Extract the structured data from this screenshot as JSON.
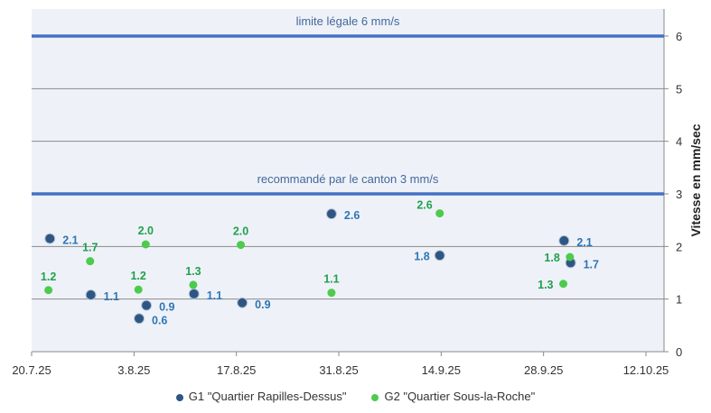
{
  "chart_data": {
    "type": "scatter",
    "title": "",
    "xlabel": "",
    "ylabel": "Vitesse en mm/sec",
    "x_ticks": [
      "20.7.25",
      "3.8.25",
      "17.8.25",
      "31.8.25",
      "14.9.25",
      "28.9.25",
      "12.10.25"
    ],
    "x_tick_days": [
      0,
      14,
      28,
      42,
      56,
      70,
      84
    ],
    "x_unit": "days since 20.7.25",
    "xlim": [
      0,
      86
    ],
    "ylim": [
      0,
      6.5
    ],
    "y_ticks": [
      0,
      1,
      2,
      3,
      4,
      5,
      6
    ],
    "grid": true,
    "legend_position": "bottom",
    "reference_lines": [
      {
        "y": 6,
        "label": "limite légale 6 mm/s"
      },
      {
        "y": 3,
        "label": "recommandé par le canton 3 mm/s"
      }
    ],
    "series": [
      {
        "name": "G1 \"Quartier Rapilles-Dessus\"",
        "color": "#2f5683",
        "label_color": "#2e75b6",
        "points": [
          {
            "x": 2.5,
            "y": 2.15,
            "label": "2.1",
            "label_pos": "right"
          },
          {
            "x": 8.1,
            "y": 1.08,
            "label": "1.1",
            "label_pos": "right"
          },
          {
            "x": 14.7,
            "y": 0.63,
            "label": "0.6",
            "label_pos": "right"
          },
          {
            "x": 15.7,
            "y": 0.88,
            "label": "0.9",
            "label_pos": "right"
          },
          {
            "x": 22.2,
            "y": 1.1,
            "label": "1.1",
            "label_pos": "right"
          },
          {
            "x": 28.8,
            "y": 0.93,
            "label": "0.9",
            "label_pos": "right"
          },
          {
            "x": 41.0,
            "y": 2.62,
            "label": "2.6",
            "label_pos": "right"
          },
          {
            "x": 55.8,
            "y": 1.83,
            "label": "1.8",
            "label_pos": "left"
          },
          {
            "x": 72.8,
            "y": 2.11,
            "label": "2.1",
            "label_pos": "right"
          },
          {
            "x": 73.7,
            "y": 1.69,
            "label": "1.7",
            "label_pos": "right"
          }
        ]
      },
      {
        "name": "G2 \"Quartier Sous-la-Roche\"",
        "color": "#4ccb4c",
        "label_color": "#21a04b",
        "points": [
          {
            "x": 2.3,
            "y": 1.17,
            "label": "1.2",
            "label_pos": "above"
          },
          {
            "x": 8.0,
            "y": 1.72,
            "label": "1.7",
            "label_pos": "above"
          },
          {
            "x": 14.6,
            "y": 1.18,
            "label": "1.2",
            "label_pos": "above"
          },
          {
            "x": 15.6,
            "y": 2.04,
            "label": "2.0",
            "label_pos": "above"
          },
          {
            "x": 22.1,
            "y": 1.27,
            "label": "1.3",
            "label_pos": "above"
          },
          {
            "x": 28.6,
            "y": 2.03,
            "label": "2.0",
            "label_pos": "above"
          },
          {
            "x": 41.0,
            "y": 1.12,
            "label": "1.1",
            "label_pos": "above"
          },
          {
            "x": 55.8,
            "y": 2.63,
            "label": "2.6",
            "label_pos": "aboveleft"
          },
          {
            "x": 72.7,
            "y": 1.29,
            "label": "1.3",
            "label_pos": "left"
          },
          {
            "x": 73.6,
            "y": 1.8,
            "label": "1.8",
            "label_pos": "left"
          }
        ]
      }
    ]
  }
}
